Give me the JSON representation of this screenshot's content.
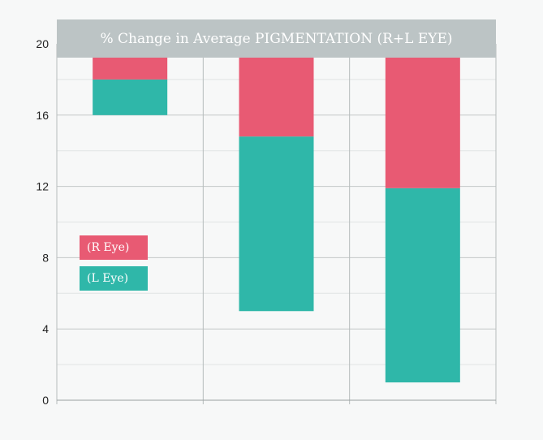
{
  "chart_data": {
    "type": "bar",
    "stacked": true,
    "floating": true,
    "title": "% Change in Average PIGMENTATION (R+L EYE)",
    "xlabel": "",
    "ylabel": "",
    "ylim": [
      0,
      20
    ],
    "yticks": [
      "0",
      "4",
      "8",
      "12",
      "16",
      "20"
    ],
    "ytick_values": [
      0,
      4,
      8,
      12,
      16,
      20
    ],
    "categories": [
      "",
      "",
      ""
    ],
    "grid": true,
    "legend_position": "left",
    "series": [
      {
        "name": "(L Eye)",
        "color": "#2fb7a9",
        "ranges": [
          [
            16,
            18
          ],
          [
            5,
            14.8
          ],
          [
            1,
            11.9
          ]
        ]
      },
      {
        "name": "(R Eye)",
        "color": "#e85a73",
        "ranges": [
          [
            18,
            20
          ],
          [
            14.8,
            20
          ],
          [
            11.9,
            20
          ]
        ]
      }
    ]
  },
  "colors": {
    "background": "#f7f8f8",
    "title_band": "#bcc4c5",
    "grid": "#d2d6d6",
    "axis": "#9aa0a0"
  }
}
